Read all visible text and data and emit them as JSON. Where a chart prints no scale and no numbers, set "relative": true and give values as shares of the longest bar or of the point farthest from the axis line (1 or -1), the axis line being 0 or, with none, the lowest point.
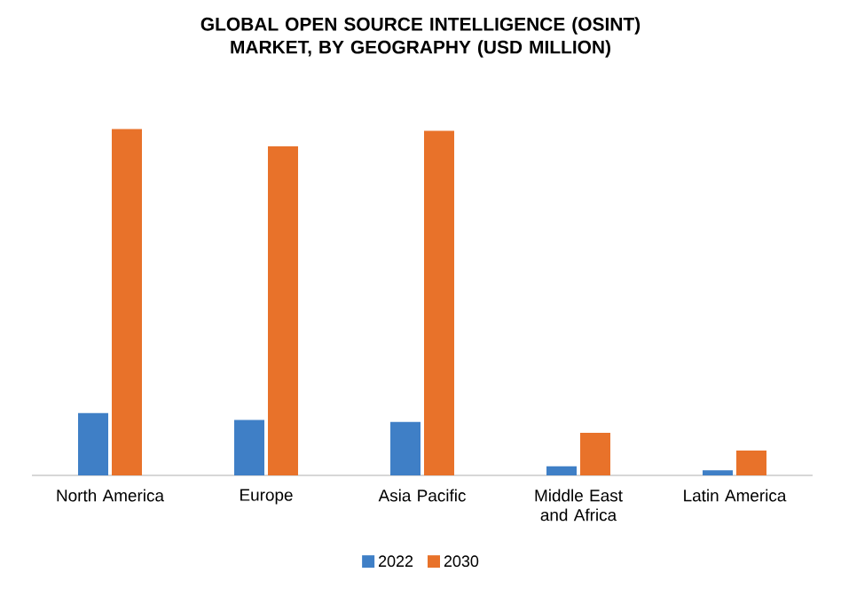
{
  "chart_data": {
    "type": "bar",
    "title": "GLOBAL OPEN SOURCE INTELLIGENCE (OSINT) MARKET, BY GEOGRAPHY (USD MILLION)",
    "relative": true,
    "legend": "bottom",
    "categories": [
      "North America",
      "Europe",
      "Asia Pacific",
      "Middle East and Africa",
      "Latin America"
    ],
    "series": [
      {
        "name": "2022",
        "color": "#3f7fc6",
        "values": [
          0.18,
          0.16,
          0.154,
          0.026,
          0.015
        ]
      },
      {
        "name": "2030",
        "color": "#e8722a",
        "values": [
          1,
          0.95,
          0.995,
          0.123,
          0.072
        ]
      }
    ]
  }
}
